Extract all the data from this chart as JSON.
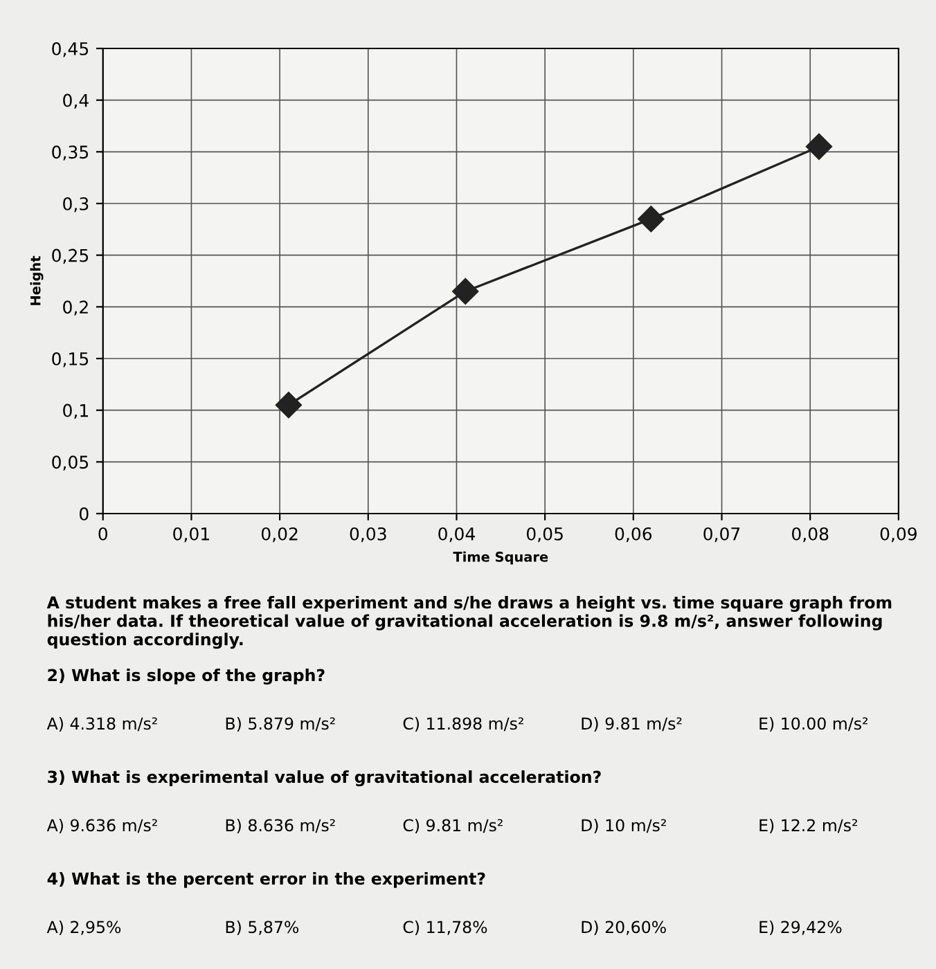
{
  "chart_data": {
    "type": "line",
    "xlabel": "Time Square",
    "ylabel": "Height",
    "x": [
      0.021,
      0.041,
      0.062,
      0.081
    ],
    "series": [
      {
        "color": "#222222",
        "values": [
          0.105,
          0.215,
          0.285,
          0.355
        ]
      }
    ],
    "marker": "diamond",
    "line_style": "solid",
    "grid": true,
    "legend": false,
    "xlim": [
      0,
      0.09
    ],
    "ylim": [
      0,
      0.45
    ],
    "xticks": [
      0,
      {
        "value": 0.01,
        "label": "0,01"
      },
      {
        "value": 0.02,
        "label": "0,02"
      },
      {
        "value": 0.03,
        "label": "0,03"
      },
      {
        "value": 0.04,
        "label": "0,04"
      },
      {
        "value": 0.05,
        "label": "0,05"
      },
      {
        "value": 0.06,
        "label": "0,06"
      },
      {
        "value": 0.07,
        "label": "0,07"
      },
      {
        "value": 0.08,
        "label": "0,08"
      },
      {
        "value": 0.09,
        "label": "0,09"
      }
    ],
    "yticks": [
      0,
      {
        "value": 0.05,
        "label": "0,05"
      },
      {
        "value": 0.1,
        "label": "0,1"
      },
      {
        "value": 0.15,
        "label": "0,15"
      },
      {
        "value": 0.2,
        "label": "0,2"
      },
      {
        "value": 0.25,
        "label": "0,25"
      },
      {
        "value": 0.3,
        "label": "0,3"
      },
      {
        "value": 0.35,
        "label": "0,35"
      },
      {
        "value": 0.4,
        "label": "0,4"
      },
      {
        "value": 0.45,
        "label": "0,45"
      }
    ],
    "annotations": [
      "A student makes a free fall experiment and s/he draws a height vs. time square graph from his/her data. If theoretical value of gravitational acceleration is 9.8 m/s², answer following question accordingly.",
      "2) What is slope of the graph?",
      "A) 4.318 m/s²",
      "B) 5.879 m/s²",
      "C) 11.898 m/s²",
      "D) 9.81 m/s²",
      "E) 10.00 m/s²",
      "3) What is experimental value of gravitational acceleration?",
      "A) 9.636 m/s²",
      "B) 8.636 m/s²",
      "C) 9.81 m/s²",
      "D) 10 m/s²",
      "E) 12.2 m/s²",
      "4) What is the percent error in the experiment?",
      "A) 2,95%",
      "B) 5,87%",
      "C) 11,78%",
      "D) 20,60%",
      "E) 29,42%"
    ]
  }
}
